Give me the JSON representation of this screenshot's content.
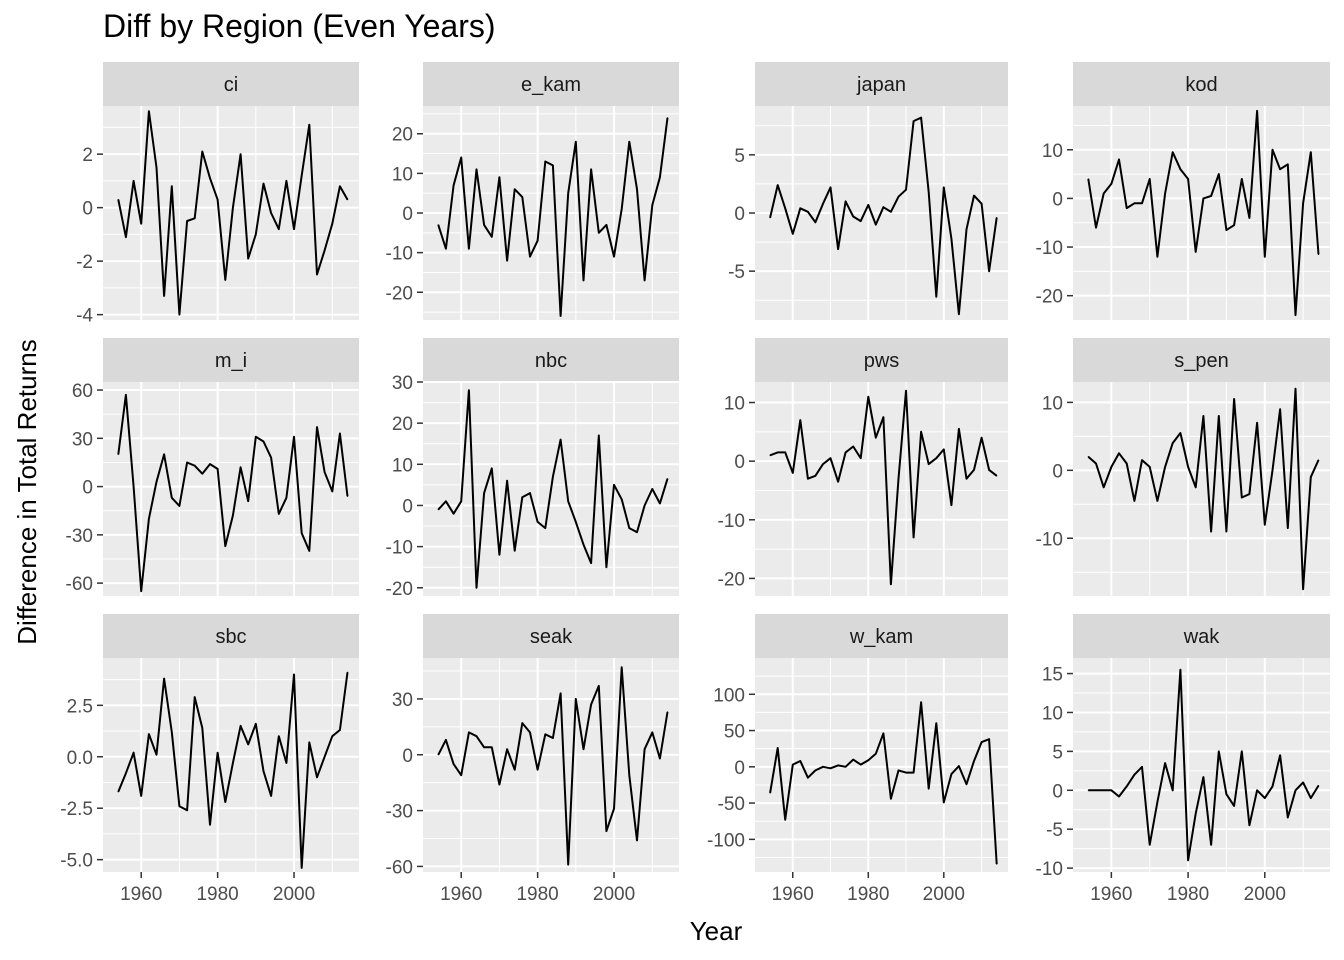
{
  "chart_data": {
    "type": "line",
    "title": "Diff by Region (Even Years)",
    "xlabel": "Year",
    "ylabel": "Difference in Total Returns",
    "x_ticks": [
      1960,
      1980,
      2000
    ],
    "xlim": [
      1950,
      2017
    ],
    "grid": true,
    "layout": "facet grid 3 rows x 4 columns, free y scales",
    "series_color": "#000000",
    "panel_background": "#ebebeb",
    "strip_background": "#d9d9d9",
    "x": [
      1954,
      1956,
      1958,
      1960,
      1962,
      1964,
      1966,
      1968,
      1970,
      1972,
      1974,
      1976,
      1978,
      1980,
      1982,
      1984,
      1986,
      1988,
      1990,
      1992,
      1994,
      1996,
      1998,
      2000,
      2002,
      2004,
      2006,
      2008,
      2010,
      2012,
      2014
    ],
    "panels": [
      {
        "name": "ci",
        "ylim": [
          -4.2,
          3.8
        ],
        "y_ticks": [
          2,
          0,
          -2,
          -4
        ],
        "y_tick_labels": [
          "2",
          "0",
          "-2",
          "-4"
        ],
        "values": [
          0.3,
          -1.1,
          1.0,
          -0.6,
          3.6,
          1.5,
          -3.3,
          0.8,
          -4.0,
          -0.5,
          -0.4,
          2.1,
          1.1,
          0.3,
          -2.7,
          0.0,
          2.0,
          -1.9,
          -1.0,
          0.9,
          -0.2,
          -0.8,
          1.0,
          -0.8,
          1.2,
          3.1,
          -2.5,
          -1.6,
          -0.6,
          0.8,
          0.3
        ]
      },
      {
        "name": "e_kam",
        "ylim": [
          -27,
          27
        ],
        "y_ticks": [
          20,
          10,
          0,
          -10,
          -20
        ],
        "y_tick_labels": [
          "20",
          "10",
          "0",
          "-10",
          "-20"
        ],
        "values": [
          -3,
          -9,
          7,
          14,
          -9,
          11,
          -3,
          -6,
          9,
          -12,
          6,
          4,
          -11,
          -7,
          13,
          12,
          -26,
          5,
          18,
          -17,
          11,
          -5,
          -3,
          -11,
          1,
          18,
          6,
          -17,
          2,
          9,
          24
        ]
      },
      {
        "name": "japan",
        "ylim": [
          -9.2,
          9.2
        ],
        "y_ticks": [
          5,
          0,
          -5
        ],
        "y_tick_labels": [
          "5",
          "0",
          "-5"
        ],
        "values": [
          -0.4,
          2.4,
          0.4,
          -1.8,
          0.4,
          0.1,
          -0.8,
          0.8,
          2.2,
          -3.1,
          1.0,
          -0.3,
          -0.7,
          0.7,
          -1.0,
          0.5,
          0.1,
          1.4,
          2.0,
          7.9,
          8.2,
          1.8,
          -7.2,
          2.2,
          -2.2,
          -8.7,
          -1.4,
          1.5,
          0.8,
          -5.0,
          -0.4
        ]
      },
      {
        "name": "kod",
        "ylim": [
          -25,
          19
        ],
        "y_ticks": [
          10,
          0,
          -10,
          -20
        ],
        "y_tick_labels": [
          "10",
          "0",
          "-10",
          "-20"
        ],
        "values": [
          4,
          -6,
          1,
          3,
          8,
          -2,
          -1,
          -1,
          4,
          -12,
          1,
          9.5,
          6,
          4,
          -11,
          0,
          0.5,
          5,
          -6.5,
          -5.5,
          4,
          -4,
          18,
          -12,
          10,
          6,
          7,
          -24,
          -1,
          9.5,
          -11.5
        ]
      },
      {
        "name": "m_i",
        "ylim": [
          -68,
          65
        ],
        "y_ticks": [
          60,
          30,
          0,
          -30,
          -60
        ],
        "y_tick_labels": [
          "60",
          "30",
          "0",
          "-30",
          "-60"
        ],
        "values": [
          20,
          57,
          0,
          -65,
          -20,
          3,
          20,
          -7,
          -12,
          15,
          13,
          8,
          14,
          11,
          -37,
          -18,
          12,
          -9,
          31,
          28,
          18,
          -17,
          -7,
          31,
          -29,
          -40,
          37,
          9,
          -3,
          33,
          -6
        ]
      },
      {
        "name": "nbc",
        "ylim": [
          -22,
          30
        ],
        "y_ticks": [
          30,
          20,
          10,
          0,
          -10,
          -20
        ],
        "y_tick_labels": [
          "30",
          "20",
          "10",
          "0",
          "-10",
          "-20"
        ],
        "values": [
          -1,
          1,
          -2,
          1,
          28,
          -20,
          3,
          9,
          -12,
          6,
          -11,
          2,
          3,
          -4,
          -5.5,
          7,
          16,
          1,
          -4,
          -9.5,
          -14,
          17,
          -15,
          5,
          1.5,
          -5.5,
          -6.5,
          0,
          4,
          0.5,
          6.5
        ]
      },
      {
        "name": "pws",
        "ylim": [
          -23,
          13.5
        ],
        "y_ticks": [
          10,
          0,
          -10,
          -20
        ],
        "y_tick_labels": [
          "10",
          "0",
          "-10",
          "-20"
        ],
        "values": [
          1,
          1.5,
          1.5,
          -2,
          7,
          -3,
          -2.5,
          -0.5,
          0.5,
          -3.5,
          1.5,
          2.5,
          0.5,
          11,
          4,
          7.5,
          -21,
          -3,
          12,
          -13,
          5,
          -0.5,
          0.5,
          2,
          -7.5,
          5.5,
          -3,
          -1.5,
          4,
          -1.5,
          -2.5
        ]
      },
      {
        "name": "s_pen",
        "ylim": [
          -18.5,
          13
        ],
        "y_ticks": [
          10,
          0,
          -10
        ],
        "y_tick_labels": [
          "10",
          "0",
          "-10"
        ],
        "values": [
          2,
          1,
          -2.5,
          0.5,
          2.5,
          1,
          -4.5,
          1.5,
          0.5,
          -4.5,
          0.5,
          4,
          5.5,
          0.5,
          -2.5,
          8,
          -9,
          8,
          -9,
          10.5,
          -4,
          -3.5,
          7,
          -8,
          0,
          9,
          -8.5,
          12,
          -17.5,
          -1,
          1.5
        ]
      },
      {
        "name": "sbc",
        "ylim": [
          -5.6,
          4.8
        ],
        "y_ticks": [
          2.5,
          0.0,
          -2.5,
          -5.0
        ],
        "y_tick_labels": [
          "2.5",
          "0.0",
          "-2.5",
          "-5.0"
        ],
        "values": [
          -1.7,
          -0.8,
          0.2,
          -1.9,
          1.1,
          0.1,
          3.8,
          1.2,
          -2.4,
          -2.6,
          2.9,
          1.4,
          -3.3,
          0.2,
          -2.2,
          -0.3,
          1.5,
          0.6,
          1.6,
          -0.7,
          -1.9,
          1.0,
          -0.3,
          4.0,
          -5.4,
          0.7,
          -1.0,
          0.0,
          1.0,
          1.3,
          4.1
        ]
      },
      {
        "name": "seak",
        "ylim": [
          -63,
          52
        ],
        "y_ticks": [
          30,
          0,
          -30,
          -60
        ],
        "y_tick_labels": [
          "30",
          "0",
          "-30",
          "-60"
        ],
        "values": [
          0,
          8,
          -5,
          -11,
          12,
          10,
          4,
          4,
          -16,
          3,
          -8,
          17,
          12,
          -8,
          11,
          9,
          33,
          -59,
          30,
          3,
          27,
          37,
          -41,
          -29,
          47,
          -11,
          -46,
          3,
          12,
          -2,
          23
        ]
      },
      {
        "name": "w_kam",
        "ylim": [
          -145,
          150
        ],
        "y_ticks": [
          100,
          50,
          0,
          -50,
          -100
        ],
        "y_tick_labels": [
          "100",
          "50",
          "0",
          "-50",
          "-100"
        ],
        "values": [
          -36,
          26,
          -73,
          3,
          8,
          -15,
          -5,
          0,
          -2,
          2,
          0,
          10,
          3,
          9,
          18,
          46,
          -44,
          -5,
          -8,
          -8,
          89,
          -30,
          60,
          -49,
          -10,
          1,
          -24,
          8,
          34,
          38,
          -134
        ]
      },
      {
        "name": "wak",
        "ylim": [
          -10.5,
          17
        ],
        "y_ticks": [
          15,
          10,
          5,
          0,
          -5,
          -10
        ],
        "y_tick_labels": [
          "15",
          "10",
          "5",
          "0",
          "-5",
          "-10"
        ],
        "values": [
          0,
          0,
          0,
          0,
          -0.8,
          0.5,
          2,
          3,
          -7,
          -1.5,
          3.5,
          0,
          15.5,
          -9,
          -3,
          1.7,
          -7,
          5,
          -0.5,
          -2,
          5,
          -4.5,
          0,
          -1,
          0.5,
          4.5,
          -3.5,
          0,
          1,
          -1,
          0.6
        ]
      }
    ]
  }
}
